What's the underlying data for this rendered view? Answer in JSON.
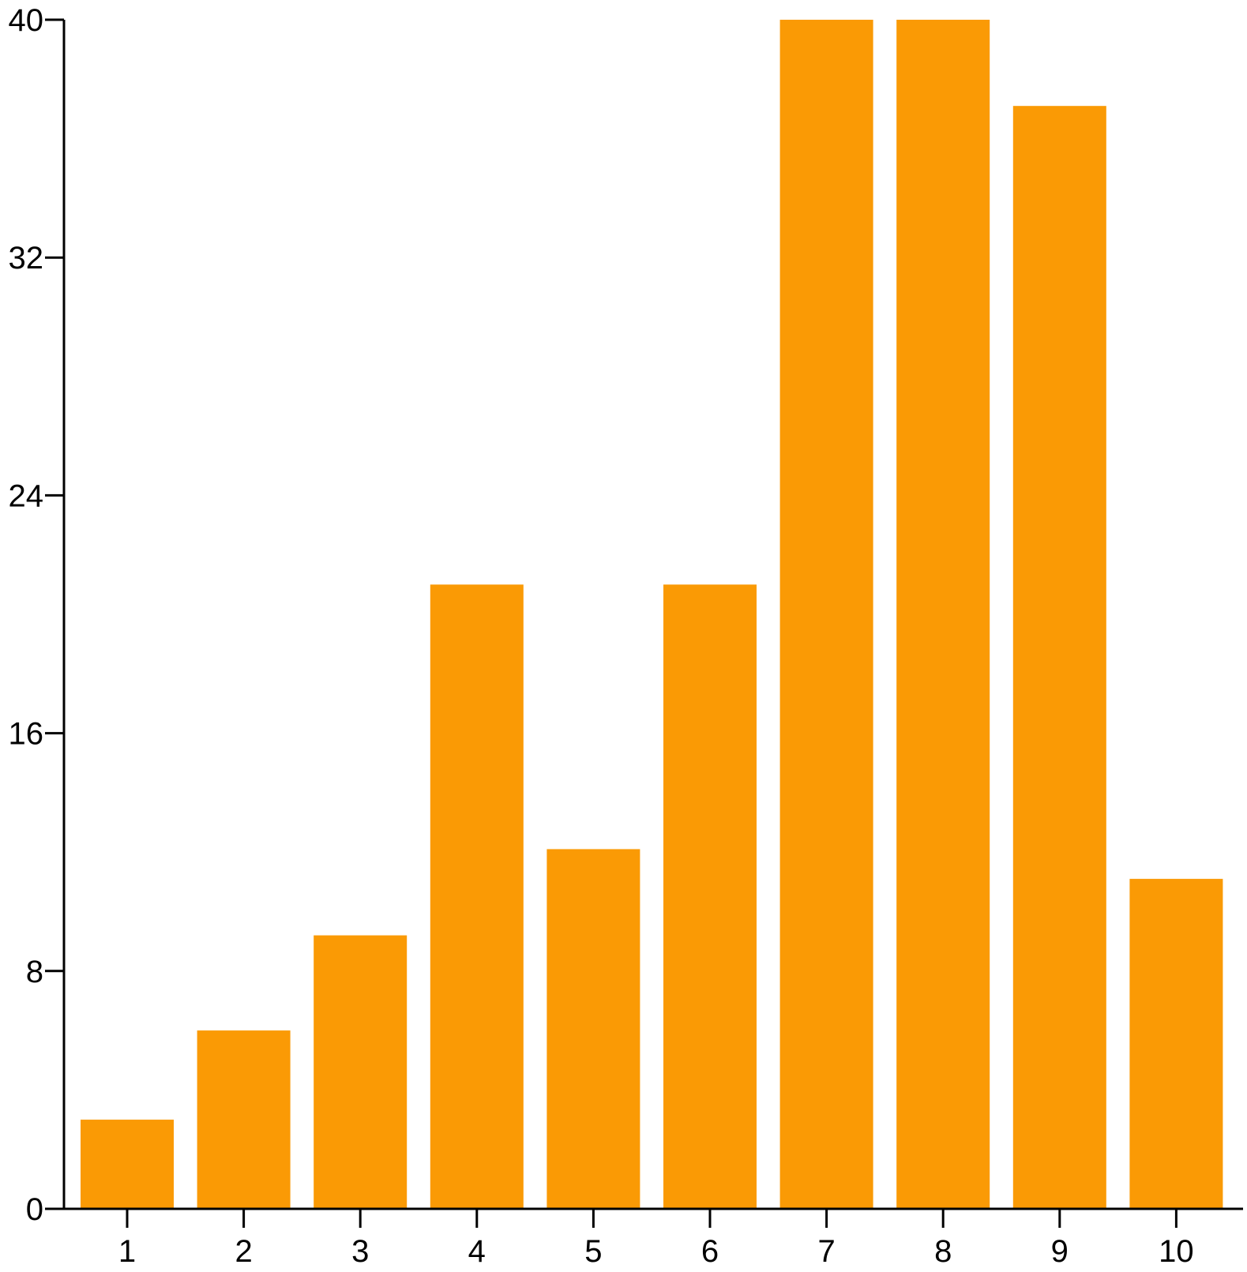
{
  "chart_data": {
    "type": "bar",
    "title": "",
    "xlabel": "",
    "ylabel": "",
    "categories": [
      "1",
      "2",
      "3",
      "4",
      "5",
      "6",
      "7",
      "8",
      "9",
      "10"
    ],
    "values": [
      3,
      6,
      9.2,
      21,
      12.1,
      21,
      40,
      40,
      37.1,
      11.1
    ],
    "ylim": [
      0,
      40
    ],
    "yticks": [
      "0",
      "8",
      "16",
      "24",
      "32",
      "40"
    ],
    "grid": false,
    "legend": "none",
    "bar_color": "#fa9a05",
    "axis_color": "#000000"
  }
}
